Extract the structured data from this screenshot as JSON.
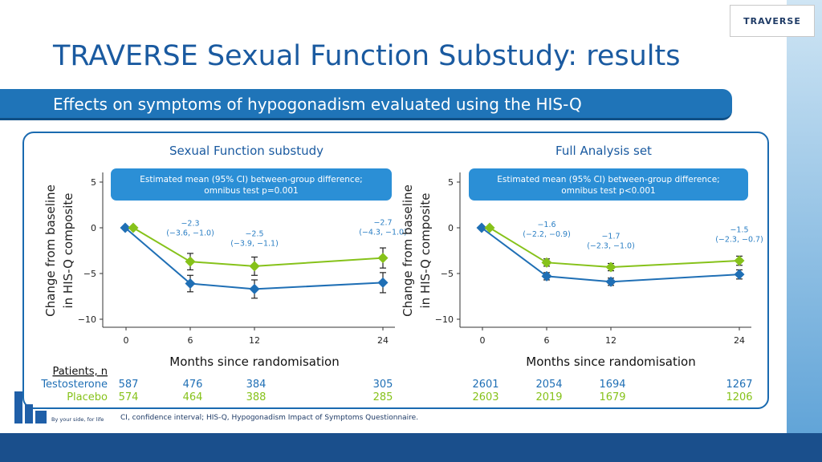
{
  "header": {
    "title": "TRAVERSE Sexual Function Substudy: results",
    "subtitle": "Effects on symptoms of hypogonadism evaluated using the HIS-Q",
    "logo_text": "TRAVERSE"
  },
  "footer": {
    "footnote": "CI, confidence interval; HIS-Q, Hypogonadism Impact of Symptoms Questionnaire.",
    "tagline": "By your side, for life"
  },
  "patients_table": {
    "header": "Patients, n",
    "rows": [
      {
        "label": "Testosterone",
        "color": "#1f6fb5",
        "left": [
          "587",
          "476",
          "384",
          "305"
        ],
        "right": [
          "2601",
          "2054",
          "1694",
          "1267"
        ]
      },
      {
        "label": "Placebo",
        "color": "#86c21a",
        "left": [
          "574",
          "464",
          "388",
          "285"
        ],
        "right": [
          "2603",
          "2019",
          "1679",
          "1206"
        ]
      }
    ]
  },
  "colors": {
    "testosterone": "#1f6fb5",
    "placebo": "#86c21a",
    "axis_text": "#1f3b66",
    "note_box": "#2b8fd6"
  },
  "chart_data": [
    {
      "type": "line",
      "title": "Sexual Function substudy",
      "xlabel": "Months since randomisation",
      "ylabel": [
        "Change from baseline",
        "in HIS-Q composite"
      ],
      "x": [
        0,
        6,
        12,
        24
      ],
      "xticks": [
        "0",
        "6",
        "12",
        "24"
      ],
      "ylim": [
        -10,
        5
      ],
      "yticks": [
        {
          "v": 5,
          "t": "5"
        },
        {
          "v": 0,
          "t": "0"
        },
        {
          "v": -5,
          "t": "−5"
        },
        {
          "v": -10,
          "t": "−10"
        }
      ],
      "note": [
        "Estimated mean (95% CI) between-group difference;",
        "omnibus test p=0.001"
      ],
      "series": [
        {
          "name": "Testosterone",
          "marker": "diamond",
          "values": [
            0,
            -6.1,
            -6.7,
            -6.0
          ],
          "err": [
            0,
            0.9,
            1.0,
            1.1
          ]
        },
        {
          "name": "Placebo",
          "marker": "diamond",
          "values": [
            0,
            -3.7,
            -4.2,
            -3.3
          ],
          "err": [
            0,
            0.9,
            1.0,
            1.1
          ]
        }
      ],
      "annotations": [
        {
          "x": 6,
          "y": 0.2,
          "lines": [
            "−2.3",
            "(−3.6, −1.0)"
          ]
        },
        {
          "x": 12,
          "y": -0.9,
          "lines": [
            "−2.5",
            "(−3.9, −1.1)"
          ]
        },
        {
          "x": 24,
          "y": 0.3,
          "lines": [
            "−2.7",
            "(−4.3, −1.0)"
          ]
        }
      ]
    },
    {
      "type": "line",
      "title": "Full Analysis set",
      "xlabel": "Months since randomisation",
      "ylabel": [
        "Change from baseline",
        "in HIS-Q composite"
      ],
      "x": [
        0,
        6,
        12,
        24
      ],
      "xticks": [
        "0",
        "6",
        "12",
        "24"
      ],
      "ylim": [
        -10,
        5
      ],
      "yticks": [
        {
          "v": 5,
          "t": "5"
        },
        {
          "v": 0,
          "t": "0"
        },
        {
          "v": -5,
          "t": "−5"
        },
        {
          "v": -10,
          "t": "−10"
        }
      ],
      "note": [
        "Estimated mean (95% CI) between-group difference;",
        "omnibus test p<0.001"
      ],
      "series": [
        {
          "name": "Testosterone",
          "marker": "diamond",
          "values": [
            0,
            -5.3,
            -5.9,
            -5.1
          ],
          "err": [
            0,
            0.4,
            0.4,
            0.5
          ]
        },
        {
          "name": "Placebo",
          "marker": "diamond",
          "values": [
            0,
            -3.8,
            -4.3,
            -3.6
          ],
          "err": [
            0,
            0.4,
            0.4,
            0.5
          ]
        }
      ],
      "annotations": [
        {
          "x": 6,
          "y": 0.1,
          "lines": [
            "−1.6",
            "(−2.2, −0.9)"
          ]
        },
        {
          "x": 12,
          "y": -1.2,
          "lines": [
            "−1.7",
            "(−2.3, −1.0)"
          ]
        },
        {
          "x": 24,
          "y": -0.5,
          "lines": [
            "−1.5",
            "(−2.3, −0.7)"
          ]
        }
      ]
    }
  ]
}
